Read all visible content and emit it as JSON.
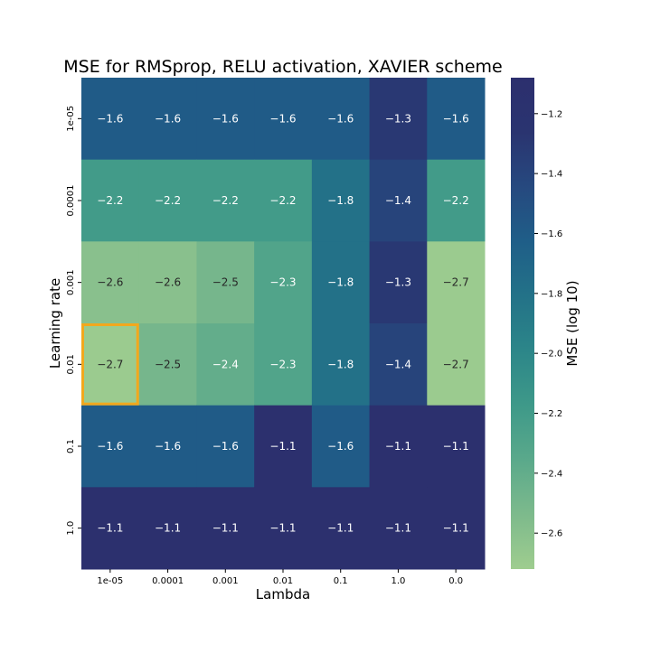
{
  "chart_data": {
    "type": "heatmap",
    "title": "MSE for RMSprop, RELU activation, XAVIER scheme",
    "xlabel": "Lambda",
    "ylabel": "Learning rate",
    "x_categories": [
      "1e-05",
      "0.0001",
      "0.001",
      "0.01",
      "0.1",
      "1.0",
      "0.0"
    ],
    "y_categories": [
      "1e-05",
      "0.0001",
      "0.001",
      "0.01",
      "0.1",
      "1.0"
    ],
    "values": [
      [
        -1.6,
        -1.6,
        -1.6,
        -1.6,
        -1.6,
        -1.3,
        -1.6
      ],
      [
        -2.2,
        -2.2,
        -2.2,
        -2.2,
        -1.8,
        -1.4,
        -2.2
      ],
      [
        -2.6,
        -2.6,
        -2.5,
        -2.3,
        -1.8,
        -1.3,
        -2.7
      ],
      [
        -2.7,
        -2.5,
        -2.4,
        -2.3,
        -1.8,
        -1.4,
        -2.7
      ],
      [
        -1.6,
        -1.6,
        -1.6,
        -1.1,
        -1.6,
        -1.1,
        -1.1
      ],
      [
        -1.1,
        -1.1,
        -1.1,
        -1.1,
        -1.1,
        -1.1,
        -1.1
      ]
    ],
    "colorbar": {
      "label": "MSE (log 10)",
      "range": [
        -2.72,
        -1.08
      ],
      "ticks": [
        -1.2,
        -1.4,
        -1.6,
        -1.8,
        -2.0,
        -2.2,
        -2.4,
        -2.6
      ],
      "tick_labels": [
        "−1.2",
        "−1.4",
        "−1.6",
        "−1.8",
        "−2.0",
        "−2.2",
        "−2.4",
        "−2.6"
      ]
    },
    "colormap": [
      "#9fcd8f",
      "#7dba8c",
      "#5aa98b",
      "#3e9989",
      "#2c8689",
      "#237288",
      "#1f5e88",
      "#26497f",
      "#2a3470",
      "#2c2f6e"
    ],
    "highlight": {
      "row": 3,
      "col": 0,
      "color": "#f2a81d"
    }
  }
}
